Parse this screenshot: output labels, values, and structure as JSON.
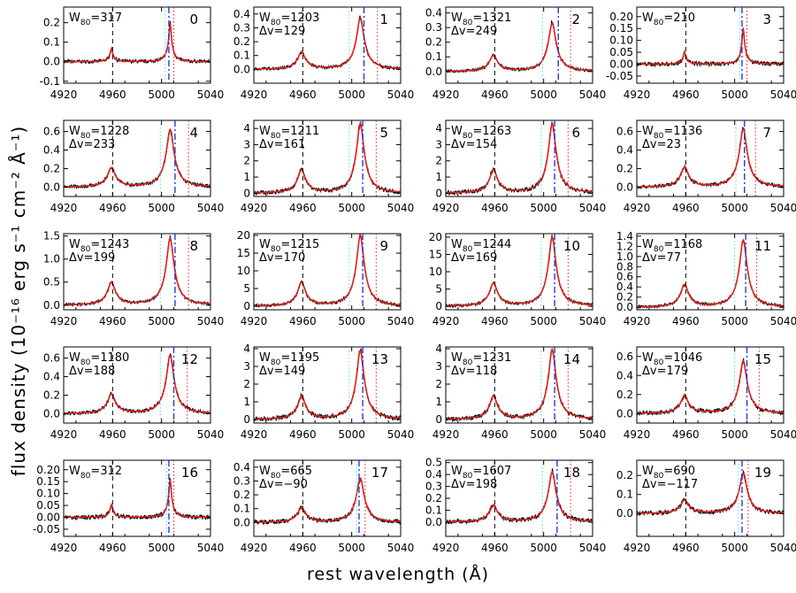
{
  "figure": {
    "ylabel": "flux density (10⁻¹⁶ erg s⁻¹ cm⁻² Å⁻¹)",
    "xlabel": "rest wavelength (Å)",
    "w_prefix": "W",
    "w_sub": "80",
    "dv_prefix": "Δv="
  },
  "colors": {
    "spectrum": "#000000",
    "model": "#e0201e",
    "marker_black": "#000000",
    "marker_cyan": "#4fd8e8",
    "marker_blue": "#1f3ccf",
    "marker_red": "#e0201e"
  },
  "chart_data": [
    {
      "type": "line",
      "panel": "0",
      "w80": "317",
      "dv": null,
      "xlim": [
        4920,
        5040
      ],
      "ylim": [
        -0.11,
        0.28
      ],
      "yticks": [
        "-0.1",
        "0.0",
        "0.1",
        "0.2"
      ],
      "xticks": [
        "4920",
        "4960",
        "5000",
        "5040"
      ],
      "peak": 0.2,
      "noise": 0.025,
      "markers": {
        "black": 4960,
        "cyan": 5003,
        "blue": 5006,
        "red": 5010
      }
    },
    {
      "type": "line",
      "panel": "1",
      "w80": "1203",
      "dv": "129",
      "xlim": [
        4920,
        5040
      ],
      "ylim": [
        -0.1,
        0.45
      ],
      "yticks": [
        "0.0",
        "0.1",
        "0.2",
        "0.3",
        "0.4"
      ],
      "xticks": [
        "4920",
        "4960",
        "5000",
        "5040"
      ],
      "peak": 0.37,
      "noise": 0.02,
      "markers": {
        "black": 4960,
        "cyan": 4998,
        "blue": 5010,
        "red": 5021
      }
    },
    {
      "type": "line",
      "panel": "2",
      "w80": "1321",
      "dv": "249",
      "xlim": [
        4920,
        5040
      ],
      "ylim": [
        -0.08,
        0.44
      ],
      "yticks": [
        "0.0",
        "0.1",
        "0.2",
        "0.3",
        "0.4"
      ],
      "xticks": [
        "4920",
        "4960",
        "5000",
        "5040"
      ],
      "peak": 0.33,
      "noise": 0.02,
      "markers": {
        "black": 4960,
        "cyan": 4999,
        "blue": 5012,
        "red": 5022
      }
    },
    {
      "type": "line",
      "panel": "3",
      "w80": "210",
      "dv": null,
      "xlim": [
        4920,
        5040
      ],
      "ylim": [
        -0.08,
        0.24
      ],
      "yticks": [
        "-0.05",
        "0.00",
        "0.05",
        "0.10",
        "0.15",
        "0.20"
      ],
      "xticks": [
        "4920",
        "4960",
        "5000",
        "5040"
      ],
      "peak": 0.15,
      "noise": 0.03,
      "markers": {
        "black": 4960,
        "cyan": 5004,
        "blue": 5006,
        "red": 5010
      }
    },
    {
      "type": "line",
      "panel": "4",
      "w80": "1228",
      "dv": "233",
      "xlim": [
        4920,
        5040
      ],
      "ylim": [
        -0.1,
        0.72
      ],
      "yticks": [
        "0.0",
        "0.2",
        "0.4",
        "0.6"
      ],
      "xticks": [
        "4920",
        "4960",
        "5000",
        "5040"
      ],
      "peak": 0.62,
      "noise": 0.025,
      "markers": {
        "black": 4960,
        "cyan": 4999,
        "blue": 5011,
        "red": 5022
      }
    },
    {
      "type": "line",
      "panel": "5",
      "w80": "1211",
      "dv": "161",
      "xlim": [
        4920,
        5040
      ],
      "ylim": [
        -0.2,
        4.5
      ],
      "yticks": [
        "0",
        "1",
        "2",
        "3",
        "4"
      ],
      "xticks": [
        "4920",
        "4960",
        "5000",
        "5040"
      ],
      "peak": 4.3,
      "noise": 0.03,
      "markers": {
        "black": 4960,
        "cyan": 4998,
        "blue": 5009,
        "red": 5020
      }
    },
    {
      "type": "line",
      "panel": "6",
      "w80": "1263",
      "dv": "154",
      "xlim": [
        4920,
        5040
      ],
      "ylim": [
        -0.2,
        4.5
      ],
      "yticks": [
        "0",
        "1",
        "2",
        "3",
        "4"
      ],
      "xticks": [
        "4920",
        "4960",
        "5000",
        "5040"
      ],
      "peak": 4.3,
      "noise": 0.03,
      "markers": {
        "black": 4960,
        "cyan": 4998,
        "blue": 5009,
        "red": 5020
      }
    },
    {
      "type": "line",
      "panel": "7",
      "w80": "1136",
      "dv": "23",
      "xlim": [
        4920,
        5040
      ],
      "ylim": [
        -0.1,
        0.72
      ],
      "yticks": [
        "0.0",
        "0.2",
        "0.4",
        "0.6"
      ],
      "xticks": [
        "4920",
        "4960",
        "5000",
        "5040"
      ],
      "peak": 0.63,
      "noise": 0.025,
      "markers": {
        "black": 4960,
        "cyan": 5001,
        "blue": 5008,
        "red": 5017
      }
    },
    {
      "type": "line",
      "panel": "8",
      "w80": "1243",
      "dv": "199",
      "xlim": [
        4920,
        5040
      ],
      "ylim": [
        -0.1,
        1.55
      ],
      "yticks": [
        "0.0",
        "0.5",
        "1.0",
        "1.5"
      ],
      "xticks": [
        "4920",
        "4960",
        "5000",
        "5040"
      ],
      "peak": 1.45,
      "noise": 0.02,
      "markers": {
        "black": 4960,
        "cyan": 4999,
        "blue": 5011,
        "red": 5022
      }
    },
    {
      "type": "line",
      "panel": "9",
      "w80": "1215",
      "dv": "170",
      "xlim": [
        4920,
        5040
      ],
      "ylim": [
        -1,
        20.5
      ],
      "yticks": [
        "0",
        "5",
        "10",
        "15",
        "20"
      ],
      "xticks": [
        "4920",
        "4960",
        "5000",
        "5040"
      ],
      "peak": 20,
      "noise": 0.02,
      "markers": {
        "black": 4960,
        "cyan": 4998,
        "blue": 5009,
        "red": 5020
      }
    },
    {
      "type": "line",
      "panel": "10",
      "w80": "1244",
      "dv": "169",
      "xlim": [
        4920,
        5040
      ],
      "ylim": [
        -1,
        21
      ],
      "yticks": [
        "0",
        "5",
        "10",
        "15",
        "20"
      ],
      "xticks": [
        "4920",
        "4960",
        "5000",
        "5040"
      ],
      "peak": 20,
      "noise": 0.02,
      "markers": {
        "black": 4960,
        "cyan": 4998,
        "blue": 5009,
        "red": 5020
      }
    },
    {
      "type": "line",
      "panel": "11",
      "w80": "1168",
      "dv": "77",
      "xlim": [
        4920,
        5040
      ],
      "ylim": [
        -0.05,
        1.45
      ],
      "yticks": [
        "0.0",
        "0.2",
        "0.4",
        "0.6",
        "0.8",
        "1.0",
        "1.2",
        "1.4"
      ],
      "xticks": [
        "4920",
        "4960",
        "5000",
        "5040"
      ],
      "peak": 1.32,
      "noise": 0.02,
      "markers": {
        "black": 4960,
        "cyan": 5000,
        "blue": 5009,
        "red": 5018
      }
    },
    {
      "type": "line",
      "panel": "12",
      "w80": "1180",
      "dv": "188",
      "xlim": [
        4920,
        5040
      ],
      "ylim": [
        -0.1,
        0.72
      ],
      "yticks": [
        "0.0",
        "0.2",
        "0.4",
        "0.6"
      ],
      "xticks": [
        "4920",
        "4960",
        "5000",
        "5040"
      ],
      "peak": 0.63,
      "noise": 0.025,
      "markers": {
        "black": 4960,
        "cyan": 4999,
        "blue": 5010,
        "red": 5021
      }
    },
    {
      "type": "line",
      "panel": "13",
      "w80": "1195",
      "dv": "149",
      "xlim": [
        4920,
        5040
      ],
      "ylim": [
        -0.2,
        4.1
      ],
      "yticks": [
        "0",
        "1",
        "2",
        "3",
        "4"
      ],
      "xticks": [
        "4920",
        "4960",
        "5000",
        "5040"
      ],
      "peak": 3.9,
      "noise": 0.03,
      "markers": {
        "black": 4960,
        "cyan": 4998,
        "blue": 5009,
        "red": 5020
      }
    },
    {
      "type": "line",
      "panel": "14",
      "w80": "1231",
      "dv": "118",
      "xlim": [
        4920,
        5040
      ],
      "ylim": [
        -0.2,
        4.1
      ],
      "yticks": [
        "0",
        "1",
        "2",
        "3",
        "4"
      ],
      "xticks": [
        "4920",
        "4960",
        "5000",
        "5040"
      ],
      "peak": 3.95,
      "noise": 0.03,
      "markers": {
        "black": 4960,
        "cyan": 4998,
        "blue": 5009,
        "red": 5020
      }
    },
    {
      "type": "line",
      "panel": "15",
      "w80": "1046",
      "dv": "179",
      "xlim": [
        4920,
        5040
      ],
      "ylim": [
        -0.1,
        0.7
      ],
      "yticks": [
        "0.0",
        "0.2",
        "0.4",
        "0.6"
      ],
      "xticks": [
        "4920",
        "4960",
        "5000",
        "5040"
      ],
      "peak": 0.55,
      "noise": 0.03,
      "markers": {
        "black": 4960,
        "cyan": 5000,
        "blue": 5010,
        "red": 5020
      }
    },
    {
      "type": "line",
      "panel": "16",
      "w80": "312",
      "dv": null,
      "xlim": [
        4920,
        5040
      ],
      "ylim": [
        -0.08,
        0.24
      ],
      "yticks": [
        "-0.05",
        "0.00",
        "0.05",
        "0.10",
        "0.15",
        "0.20"
      ],
      "xticks": [
        "4920",
        "4960",
        "5000",
        "5040"
      ],
      "peak": 0.16,
      "noise": 0.03,
      "markers": {
        "black": 4960,
        "cyan": 5004,
        "blue": 5006,
        "red": 5010
      }
    },
    {
      "type": "line",
      "panel": "17",
      "w80": "665",
      "dv": "−90",
      "xlim": [
        4920,
        5040
      ],
      "ylim": [
        -0.1,
        0.45
      ],
      "yticks": [
        "0.0",
        "0.1",
        "0.2",
        "0.3",
        "0.4"
      ],
      "xticks": [
        "4920",
        "4960",
        "5000",
        "5040"
      ],
      "peak": 0.32,
      "noise": 0.03,
      "markers": {
        "black": 4960,
        "cyan": 5004,
        "blue": 5006,
        "red": 5011
      }
    },
    {
      "type": "line",
      "panel": "18",
      "w80": "1607",
      "dv": "198",
      "xlim": [
        4920,
        5040
      ],
      "ylim": [
        -0.12,
        0.52
      ],
      "yticks": [
        "0.0",
        "0.1",
        "0.2",
        "0.3",
        "0.4",
        "0.5"
      ],
      "xticks": [
        "4920",
        "4960",
        "5000",
        "5040"
      ],
      "peak": 0.42,
      "noise": 0.03,
      "markers": {
        "black": 4960,
        "cyan": 4999,
        "blue": 5011,
        "red": 5022
      }
    },
    {
      "type": "line",
      "panel": "19",
      "w80": "690",
      "dv": "−117",
      "xlim": [
        4920,
        5040
      ],
      "ylim": [
        -0.12,
        0.28
      ],
      "yticks": [
        "0.0",
        "0.1",
        "0.2"
      ],
      "xticks": [
        "4920",
        "4960",
        "5000",
        "5040"
      ],
      "peak": 0.21,
      "noise": 0.03,
      "markers": {
        "black": 4960,
        "cyan": 5003,
        "blue": 5006,
        "red": 5011
      }
    }
  ]
}
